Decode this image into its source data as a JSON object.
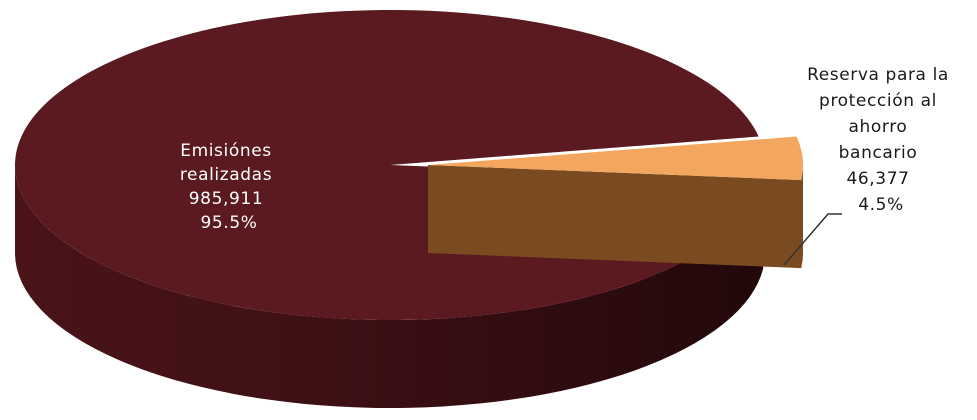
{
  "chart_data": {
    "type": "pie",
    "three_d": true,
    "slices": [
      {
        "label_lines": [
          "Emisiónes",
          "realizadas"
        ],
        "value_text": "985,911",
        "value": 985911,
        "percent_text": "95.5%",
        "percent": 95.5,
        "color": "#5a1a20",
        "side_color": "#3a0f13",
        "label_placement": "inside"
      },
      {
        "label_lines": [
          "Reserva para la",
          "protección al",
          "ahorro",
          "bancario"
        ],
        "value_text": "46,377",
        "value": 46377,
        "percent_text": "4.5%",
        "percent": 4.5,
        "color": "#f2a65e",
        "side_color": "#7a4a20",
        "label_placement": "outside-right",
        "exploded": true
      }
    ]
  }
}
